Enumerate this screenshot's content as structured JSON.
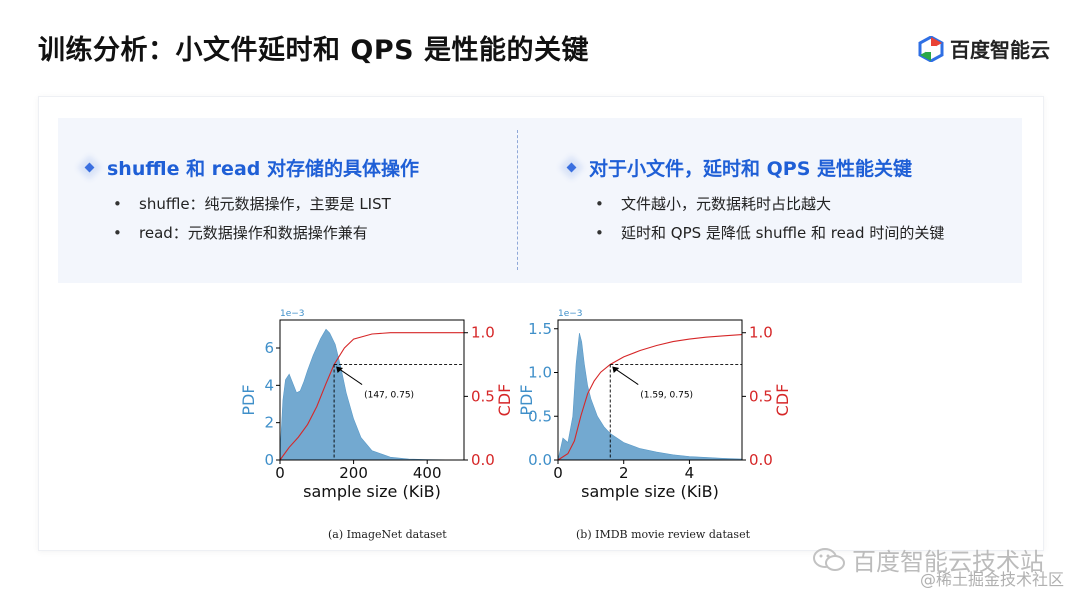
{
  "title": "训练分析：小文件延时和 QPS 是性能的关键",
  "logo_text": "百度智能云",
  "left_panel": {
    "heading": "shuffle 和 read 对存储的具体操作",
    "bullets": [
      "shuffle：纯元数据操作，主要是 LIST",
      "read：元数据操作和数据操作兼有"
    ]
  },
  "right_panel": {
    "heading": "对于小文件，延时和 QPS 是性能关键",
    "bullets": [
      "文件越小，元数据耗时占比越大",
      "延时和 QPS 是降低 shuffle 和 read 时间的关键"
    ]
  },
  "watermark": {
    "main": "百度智能云技术站",
    "sub": "@稀土掘金技术社区"
  },
  "colors": {
    "pdf": "#3f8fc9",
    "pdf_fill": "#5a9ac8",
    "cdf": "#d62728",
    "accent": "#1f5fd6"
  },
  "chart_data": [
    {
      "type": "area",
      "caption": "(a) ImageNet dataset",
      "xlabel": "sample size (KiB)",
      "ylabel_left": "PDF",
      "ylabel_right": "CDF",
      "left_scale_label": "1e−3",
      "xlim": [
        0,
        500
      ],
      "ylim_left": [
        0,
        7.5
      ],
      "ylim_right": [
        0,
        1.1
      ],
      "x_ticks": [
        "0",
        "200",
        "400"
      ],
      "x_tick_values": [
        0,
        200,
        400
      ],
      "y_left_ticks": [
        "0",
        "2",
        "4",
        "6"
      ],
      "y_left_tick_values": [
        0,
        2,
        4,
        6
      ],
      "y_right_ticks": [
        "0.0",
        "0.5",
        "1.0"
      ],
      "y_right_tick_values": [
        0,
        0.5,
        1.0
      ],
      "annotation": {
        "text": "(147, 0.75)",
        "x": 147,
        "y": 0.75
      },
      "series": [
        {
          "name": "PDF",
          "axis": "left",
          "x": [
            0,
            8,
            15,
            25,
            35,
            45,
            55,
            65,
            75,
            90,
            110,
            125,
            135,
            150,
            165,
            180,
            200,
            220,
            250,
            300,
            350,
            400,
            450,
            500
          ],
          "y": [
            0.3,
            3.2,
            4.3,
            4.6,
            4.1,
            3.6,
            3.7,
            4.2,
            4.8,
            5.6,
            6.5,
            7.0,
            6.8,
            6.2,
            5.0,
            3.6,
            2.2,
            1.2,
            0.5,
            0.15,
            0.05,
            0.02,
            0.01,
            0.0
          ]
        },
        {
          "name": "CDF",
          "axis": "right",
          "x": [
            0,
            25,
            50,
            75,
            100,
            125,
            147,
            175,
            200,
            250,
            300,
            350,
            400,
            450,
            500
          ],
          "y": [
            0.0,
            0.1,
            0.18,
            0.28,
            0.42,
            0.6,
            0.75,
            0.88,
            0.95,
            0.99,
            1.0,
            1.0,
            1.0,
            1.0,
            1.0
          ]
        }
      ]
    },
    {
      "type": "area",
      "caption": "(b) IMDB movie review dataset",
      "xlabel": "sample size (KiB)",
      "ylabel_left": "PDF",
      "ylabel_right": "CDF",
      "left_scale_label": "1e−3",
      "xlim": [
        0,
        5.6
      ],
      "ylim_left": [
        0,
        1.6
      ],
      "ylim_right": [
        0,
        1.1
      ],
      "x_ticks": [
        "0",
        "2",
        "4"
      ],
      "x_tick_values": [
        0,
        2,
        4
      ],
      "y_left_ticks": [
        "0.0",
        "0.5",
        "1.0",
        "1.5"
      ],
      "y_left_tick_values": [
        0,
        0.5,
        1.0,
        1.5
      ],
      "y_right_ticks": [
        "0.0",
        "0.5",
        "1.0"
      ],
      "y_right_tick_values": [
        0,
        0.5,
        1.0
      ],
      "annotation": {
        "text": "(1.59, 0.75)",
        "x": 1.59,
        "y": 0.75
      },
      "series": [
        {
          "name": "PDF",
          "axis": "left",
          "x": [
            0.0,
            0.15,
            0.3,
            0.45,
            0.55,
            0.65,
            0.72,
            0.8,
            0.9,
            1.0,
            1.2,
            1.4,
            1.6,
            2.0,
            2.5,
            3.0,
            3.5,
            4.0,
            4.5,
            5.0,
            5.6
          ],
          "y": [
            0.0,
            0.25,
            0.2,
            0.5,
            1.1,
            1.45,
            1.35,
            1.1,
            0.85,
            0.7,
            0.5,
            0.38,
            0.3,
            0.2,
            0.13,
            0.09,
            0.06,
            0.04,
            0.03,
            0.02,
            0.01
          ]
        },
        {
          "name": "CDF",
          "axis": "right",
          "x": [
            0.0,
            0.3,
            0.5,
            0.7,
            0.9,
            1.1,
            1.3,
            1.59,
            2.0,
            2.5,
            3.0,
            3.5,
            4.0,
            4.5,
            5.0,
            5.6
          ],
          "y": [
            0.0,
            0.05,
            0.15,
            0.35,
            0.52,
            0.62,
            0.69,
            0.75,
            0.81,
            0.86,
            0.9,
            0.93,
            0.95,
            0.965,
            0.975,
            0.985
          ]
        }
      ]
    }
  ]
}
